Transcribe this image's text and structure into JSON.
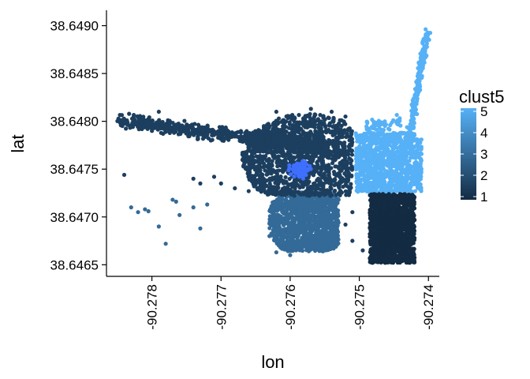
{
  "chart_data": {
    "type": "scatter",
    "xlabel": "lon",
    "ylabel": "lat",
    "xlim": [
      -90.2786,
      -90.2739
    ],
    "ylim": [
      38.64642,
      38.64912
    ],
    "x_ticks": [
      -90.278,
      -90.277,
      -90.276,
      -90.275,
      -90.274
    ],
    "x_tick_labels": [
      "-90.278",
      "-90.277",
      "-90.276",
      "-90.275",
      "-90.274"
    ],
    "y_ticks": [
      38.6465,
      38.647,
      38.6475,
      38.648,
      38.6485,
      38.649
    ],
    "y_tick_labels": [
      "38.6465",
      "38.6470",
      "38.6475",
      "38.6480",
      "38.6485",
      "38.6490"
    ],
    "grid": false,
    "legend": {
      "title": "clust5",
      "position": "right",
      "type": "colorbar",
      "range": [
        1,
        5
      ],
      "labels": [
        "1",
        "2",
        "3",
        "4",
        "5"
      ],
      "colors": [
        "#132B43",
        "#56B1F7"
      ]
    },
    "clusters": [
      {
        "cluster": 1,
        "color": "#132B43",
        "approx_extent": {
          "lon": [
            -90.2749,
            -90.2743
          ],
          "lat": [
            38.6465,
            38.64722
          ]
        }
      },
      {
        "cluster": 2,
        "color": "#1D3F5F",
        "approx_extent": {
          "lon": [
            -90.2785,
            -90.275
          ],
          "lat": [
            38.64725,
            38.64818
          ]
        }
      },
      {
        "cluster": 3,
        "color": "#336A98",
        "approx_extent": {
          "lon": [
            -90.2763,
            -90.2752
          ],
          "lat": [
            38.64656,
            38.64724
          ]
        }
      },
      {
        "cluster": 4,
        "color": "#3E6FFF",
        "approx_extent": {
          "lon": [
            -90.276,
            -90.2757
          ],
          "lat": [
            38.64743,
            38.64756
          ]
        }
      },
      {
        "cluster": 5,
        "color": "#56B1F7",
        "approx_extent": {
          "lon": [
            -90.2751,
            -90.274
          ],
          "lat": [
            38.64725,
            38.64898
          ]
        }
      }
    ],
    "highlight_cluster_color": "#3E6FFF"
  }
}
